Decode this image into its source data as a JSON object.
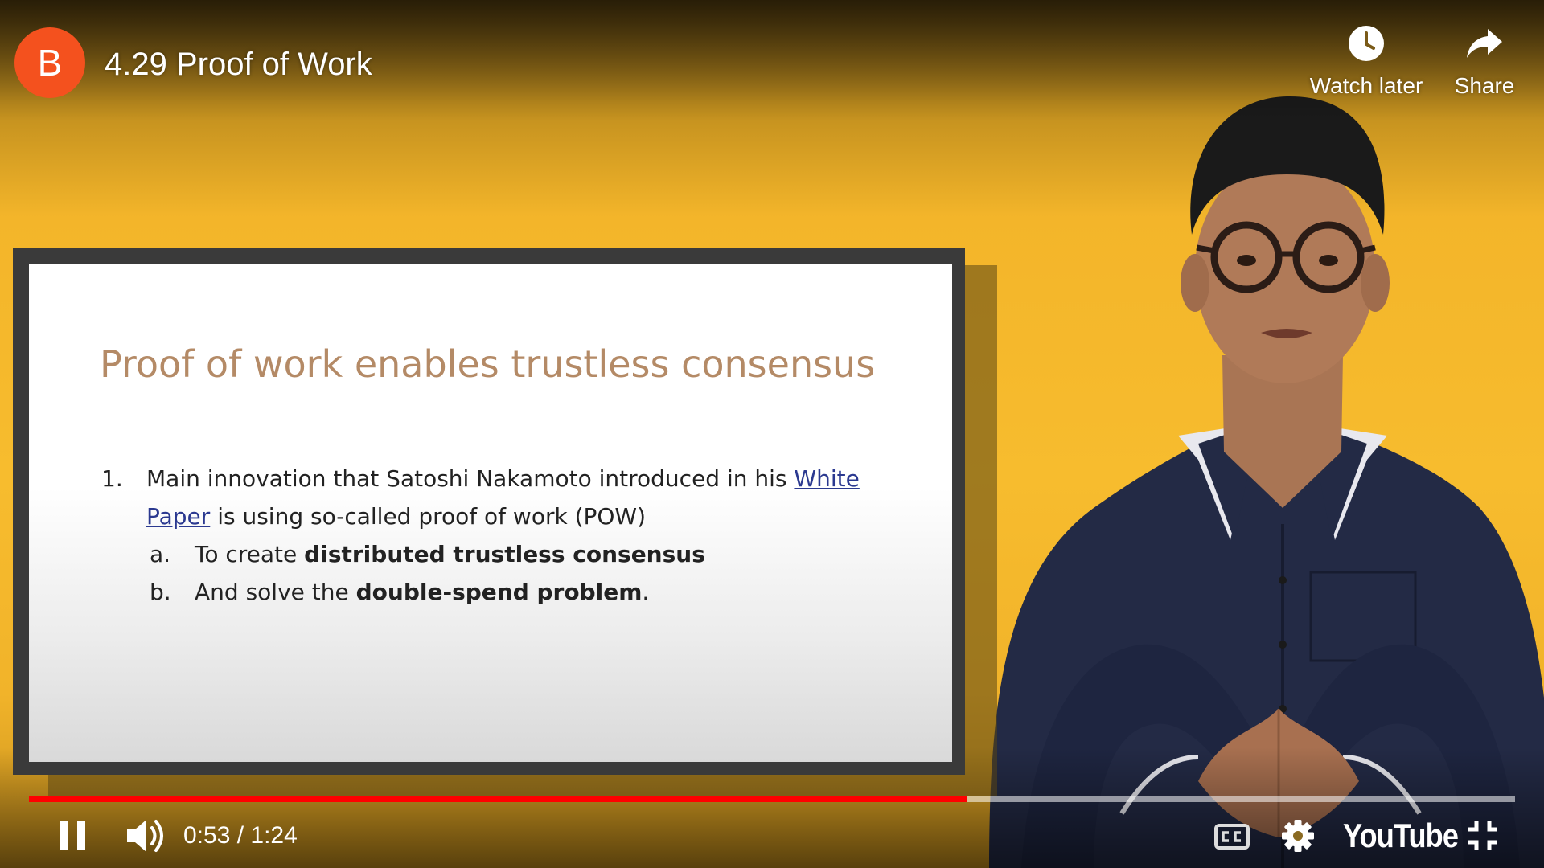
{
  "player": {
    "channel_initial": "B",
    "title": "4.29 Proof of Work",
    "watch_later_label": "Watch later",
    "share_label": "Share",
    "time_current": "0:53",
    "time_separator": " / ",
    "time_total": "1:24",
    "progress_fraction": 0.631,
    "brand": "YouTube",
    "colors": {
      "accent": "#ff0000",
      "avatar": "#f4511e",
      "background": "#f7bc2e"
    }
  },
  "slide": {
    "title": "Proof of work enables trustless consensus",
    "item1": {
      "number": "1.",
      "text_before": "Main innovation that Satoshi Nakamoto introduced in his ",
      "link_white": "White",
      "link_paper": "Paper",
      "text_after": " is using so-called proof of work (POW)"
    },
    "sub_a": {
      "letter": "a.",
      "text": "To create ",
      "bold": "distributed trustless consensus"
    },
    "sub_b": {
      "letter": "b.",
      "text": "And solve the ",
      "bold": "double-spend problem",
      "suffix": "."
    }
  },
  "icons": {
    "watch_later": "clock-icon",
    "share": "share-arrow-icon",
    "play_pause": "pause-icon",
    "volume": "volume-icon",
    "cc": "closed-captions-icon",
    "settings": "gear-icon",
    "fullscreen": "exit-fullscreen-icon"
  }
}
